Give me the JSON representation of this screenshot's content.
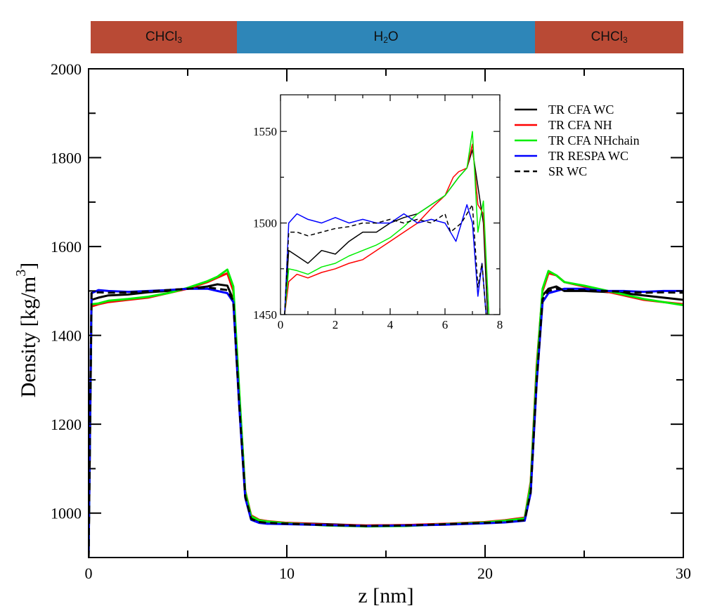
{
  "phase_bar": {
    "segments": [
      {
        "label_main": "CHCl",
        "label_sub": "3",
        "z_start": 0,
        "z_end": 7.4,
        "color": "#b94a35"
      },
      {
        "label_main": "H",
        "label_sub": "2",
        "label_tail": "O",
        "z_start": 7.4,
        "z_end": 22.5,
        "color": "#2e86b8"
      },
      {
        "label_main": "CHCl",
        "label_sub": "3",
        "z_start": 22.5,
        "z_end": 30,
        "color": "#b94a35"
      }
    ]
  },
  "chart_data": [
    {
      "id": "main",
      "type": "line",
      "title": "",
      "xlabel": "z [nm]",
      "ylabel": "Density [kg/m",
      "ylabel_sup": "3",
      "ylabel_tail": "]",
      "xlim": [
        0,
        30
      ],
      "ylim": [
        900,
        2000
      ],
      "xticks": [
        0,
        10,
        20,
        30
      ],
      "xtick_labels": [
        "0",
        "10",
        "20",
        "30"
      ],
      "xminor": [
        5,
        15,
        25
      ],
      "yticks": [
        1000,
        1200,
        1400,
        1600,
        1800,
        2000
      ],
      "ytick_labels": [
        "1000",
        "1200",
        "1400",
        "1600",
        "1800",
        "2000"
      ],
      "yminor": [
        1100,
        1300,
        1500,
        1700,
        1900
      ],
      "grid": false,
      "legend": "top-right",
      "series": [
        {
          "name": "TR CFA WC",
          "color": "#000000",
          "dash": "solid",
          "x": [
            0,
            0.15,
            0.5,
            1,
            2,
            3,
            4,
            5,
            6,
            6.5,
            7,
            7.3,
            7.6,
            7.9,
            8.2,
            8.6,
            9,
            10,
            12,
            14,
            16,
            18,
            20,
            21,
            22,
            22.3,
            22.6,
            22.9,
            23.2,
            23.6,
            24,
            25,
            26,
            27,
            28,
            29,
            30
          ],
          "y": [
            900,
            1480,
            1485,
            1490,
            1492,
            1497,
            1500,
            1505,
            1510,
            1515,
            1512,
            1480,
            1250,
            1040,
            990,
            982,
            980,
            978,
            975,
            972,
            973,
            975,
            978,
            980,
            985,
            1050,
            1300,
            1490,
            1505,
            1510,
            1500,
            1500,
            1498,
            1495,
            1490,
            1485,
            1480
          ]
        },
        {
          "name": "TR CFA NH",
          "color": "#ff0000",
          "dash": "solid",
          "x": [
            0,
            0.15,
            0.5,
            1,
            2,
            3,
            4,
            5,
            6,
            6.5,
            7,
            7.3,
            7.6,
            7.9,
            8.2,
            8.6,
            9,
            10,
            12,
            14,
            16,
            18,
            20,
            21,
            22,
            22.3,
            22.6,
            22.9,
            23.2,
            23.6,
            24,
            25,
            26,
            27,
            28,
            29,
            30
          ],
          "y": [
            900,
            1465,
            1470,
            1475,
            1480,
            1485,
            1495,
            1505,
            1520,
            1530,
            1540,
            1500,
            1270,
            1050,
            995,
            985,
            982,
            978,
            974,
            972,
            973,
            976,
            980,
            984,
            990,
            1070,
            1330,
            1500,
            1540,
            1535,
            1520,
            1510,
            1500,
            1490,
            1480,
            1475,
            1470
          ]
        },
        {
          "name": "TR CFA NHchain",
          "color": "#00ee00",
          "dash": "solid",
          "x": [
            0,
            0.15,
            0.5,
            1,
            2,
            3,
            4,
            5,
            6,
            6.5,
            7,
            7.3,
            7.6,
            7.9,
            8.2,
            8.6,
            9,
            10,
            12,
            14,
            16,
            18,
            20,
            21,
            22,
            22.3,
            22.6,
            22.9,
            23.2,
            23.6,
            24,
            25,
            26,
            27,
            28,
            29,
            30
          ],
          "y": [
            900,
            1470,
            1472,
            1478,
            1482,
            1487,
            1495,
            1507,
            1522,
            1532,
            1548,
            1510,
            1275,
            1048,
            993,
            984,
            981,
            977,
            972,
            970,
            971,
            975,
            979,
            983,
            988,
            1065,
            1320,
            1505,
            1545,
            1535,
            1520,
            1512,
            1502,
            1492,
            1482,
            1475,
            1468
          ]
        },
        {
          "name": "TR RESPA WC",
          "color": "#0000ff",
          "dash": "solid",
          "x": [
            0,
            0.15,
            0.5,
            1,
            2,
            3,
            4,
            5,
            6,
            6.5,
            7,
            7.3,
            7.6,
            7.9,
            8.2,
            8.6,
            9,
            10,
            12,
            14,
            16,
            18,
            20,
            21,
            22,
            22.3,
            22.6,
            22.9,
            23.2,
            23.6,
            24,
            25,
            26,
            27,
            28,
            29,
            30
          ],
          "y": [
            900,
            1495,
            1502,
            1500,
            1498,
            1500,
            1502,
            1505,
            1505,
            1500,
            1495,
            1475,
            1240,
            1035,
            985,
            978,
            976,
            975,
            973,
            971,
            972,
            974,
            977,
            979,
            983,
            1045,
            1290,
            1475,
            1495,
            1500,
            1505,
            1505,
            1500,
            1500,
            1498,
            1500,
            1500
          ]
        },
        {
          "name": "SR WC",
          "color": "#000000",
          "dash": "dashed",
          "x": [
            0,
            0.15,
            0.5,
            1,
            2,
            3,
            4,
            5,
            6,
            6.5,
            7,
            7.3,
            7.6,
            7.9,
            8.2,
            8.6,
            9,
            10,
            12,
            14,
            16,
            18,
            20,
            21,
            22,
            22.3,
            22.6,
            22.9,
            23.2,
            23.6,
            24,
            25,
            26,
            27,
            28,
            29,
            30
          ],
          "y": [
            900,
            1495,
            1497,
            1496,
            1497,
            1499,
            1502,
            1505,
            1508,
            1505,
            1502,
            1478,
            1245,
            1038,
            987,
            980,
            978,
            976,
            973,
            971,
            972,
            975,
            978,
            980,
            984,
            1048,
            1295,
            1482,
            1500,
            1505,
            1503,
            1502,
            1500,
            1498,
            1496,
            1497,
            1496
          ]
        }
      ]
    },
    {
      "id": "inset",
      "type": "line",
      "title": "",
      "xlabel": "",
      "ylabel": "",
      "xlim": [
        0,
        8
      ],
      "ylim": [
        1450,
        1570
      ],
      "xticks": [
        0,
        2,
        4,
        6,
        8
      ],
      "xtick_labels": [
        "0",
        "2",
        "4",
        "6",
        "8"
      ],
      "xminor": [
        1,
        3,
        5,
        7
      ],
      "yticks": [
        1450,
        1500,
        1550
      ],
      "ytick_labels": [
        "1450",
        "1500",
        "1550"
      ],
      "yminor": [
        1475,
        1525
      ],
      "grid": false,
      "series": [
        {
          "name": "TR CFA WC",
          "color": "#000000",
          "dash": "solid",
          "x": [
            0.15,
            0.3,
            0.6,
            1,
            1.5,
            2,
            2.5,
            3,
            3.5,
            4,
            4.5,
            5,
            5.5,
            6,
            6.5,
            6.8,
            7.0,
            7.2,
            7.4,
            7.55
          ],
          "y": [
            1450,
            1485,
            1482,
            1478,
            1485,
            1483,
            1490,
            1495,
            1495,
            1500,
            1503,
            1505,
            1510,
            1515,
            1525,
            1530,
            1540,
            1520,
            1500,
            1450
          ]
        },
        {
          "name": "TR CFA NH",
          "color": "#ff0000",
          "dash": "solid",
          "x": [
            0.15,
            0.3,
            0.6,
            1,
            1.5,
            2,
            2.5,
            3,
            3.5,
            4,
            4.5,
            5,
            5.5,
            6,
            6.3,
            6.5,
            6.8,
            7.0,
            7.2,
            7.4,
            7.6
          ],
          "y": [
            1450,
            1468,
            1472,
            1470,
            1473,
            1475,
            1478,
            1480,
            1485,
            1490,
            1495,
            1500,
            1508,
            1515,
            1525,
            1528,
            1530,
            1543,
            1510,
            1505,
            1450
          ]
        },
        {
          "name": "TR CFA NHchain",
          "color": "#00ee00",
          "dash": "solid",
          "x": [
            0.15,
            0.3,
            0.6,
            1,
            1.5,
            2,
            2.5,
            3,
            3.5,
            4,
            4.5,
            5,
            5.5,
            6,
            6.5,
            6.8,
            7.0,
            7.2,
            7.4,
            7.6
          ],
          "y": [
            1450,
            1475,
            1474,
            1472,
            1476,
            1478,
            1482,
            1485,
            1488,
            1492,
            1498,
            1505,
            1510,
            1515,
            1525,
            1530,
            1550,
            1495,
            1512,
            1450
          ]
        },
        {
          "name": "TR RESPA WC",
          "color": "#0000ff",
          "dash": "solid",
          "x": [
            0.15,
            0.3,
            0.6,
            1,
            1.5,
            2,
            2.5,
            3,
            3.5,
            4,
            4.5,
            5,
            5.5,
            6,
            6.4,
            6.8,
            7.0,
            7.2,
            7.35,
            7.5
          ],
          "y": [
            1450,
            1500,
            1505,
            1502,
            1500,
            1503,
            1500,
            1502,
            1500,
            1500,
            1505,
            1500,
            1502,
            1500,
            1490,
            1510,
            1500,
            1460,
            1478,
            1450
          ]
        },
        {
          "name": "SR WC",
          "color": "#000000",
          "dash": "dashed",
          "x": [
            0.15,
            0.3,
            0.6,
            1,
            1.5,
            2,
            2.5,
            3,
            3.5,
            4,
            4.5,
            5,
            5.5,
            6,
            6.2,
            6.6,
            7.0,
            7.2,
            7.35,
            7.5
          ],
          "y": [
            1450,
            1495,
            1495,
            1493,
            1495,
            1497,
            1498,
            1500,
            1500,
            1502,
            1500,
            1502,
            1500,
            1505,
            1495,
            1500,
            1510,
            1465,
            1478,
            1450
          ]
        }
      ]
    }
  ]
}
